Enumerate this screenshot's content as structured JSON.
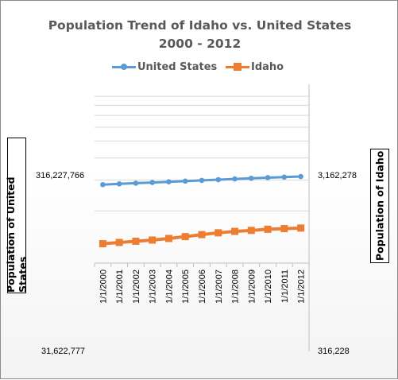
{
  "chart_data": {
    "type": "line",
    "title": "Population Trend of Idaho vs. United States",
    "subtitle": "2000 - 2012",
    "categories": [
      "1/1/2000",
      "1/1/2001",
      "1/1/2002",
      "1/1/2003",
      "1/1/2004",
      "1/1/2005",
      "1/1/2006",
      "1/1/2007",
      "1/1/2008",
      "1/1/2009",
      "1/1/2010",
      "1/1/2011",
      "1/1/2012"
    ],
    "series": [
      {
        "name": "United States",
        "axis": "left",
        "color": "#5b9bd5",
        "marker": "circle",
        "values": [
          282162411,
          284968955,
          287625193,
          290107933,
          292805298,
          295516599,
          298379912,
          301231207,
          304093966,
          306771529,
          309338421,
          311587816,
          313914040
        ]
      },
      {
        "name": "Idaho",
        "axis": "right",
        "color": "#ed7d31",
        "marker": "square",
        "values": [
          1299430,
          1321006,
          1342141,
          1363380,
          1391802,
          1425862,
          1464413,
          1499245,
          1527506,
          1547373,
          1570746,
          1584134,
          1595728
        ]
      }
    ],
    "ylabel_left": "Population of United States",
    "ylabel_right": "Population of Idaho",
    "y_left": {
      "scale": "log",
      "ylim": [
        31622777,
        1000000000
      ],
      "tick_labels": [
        "31,622,777",
        "316,227,766"
      ]
    },
    "y_right": {
      "scale": "log",
      "ylim": [
        316228,
        10000000
      ],
      "tick_labels": [
        "316,228",
        "3,162,278"
      ]
    },
    "grid": true,
    "legend": "top"
  }
}
